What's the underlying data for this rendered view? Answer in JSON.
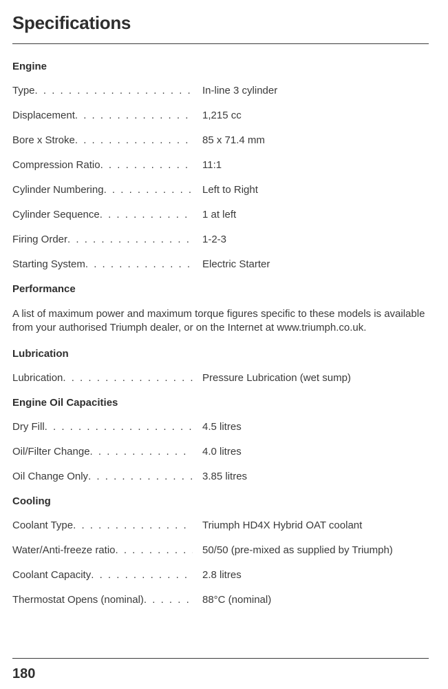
{
  "title": "Specifications",
  "sections": {
    "engine": {
      "heading": "Engine",
      "rows": [
        {
          "label": "Type",
          "value": "In-line 3 cylinder"
        },
        {
          "label": "Displacement",
          "value": "1,215 cc"
        },
        {
          "label": "Bore x Stroke",
          "value": "85 x 71.4 mm"
        },
        {
          "label": "Compression Ratio",
          "value": "11:1"
        },
        {
          "label": "Cylinder Numbering",
          "value": "Left to Right"
        },
        {
          "label": "Cylinder Sequence",
          "value": "1 at left"
        },
        {
          "label": "Firing Order",
          "value": "1-2-3"
        },
        {
          "label": "Starting System",
          "value": "Electric Starter"
        }
      ]
    },
    "performance": {
      "heading": "Performance",
      "text": "A list of maximum power and maximum torque figures specific to these models is available from your authorised Triumph dealer, or on the Internet at www.triumph.co.uk."
    },
    "lubrication": {
      "heading": "Lubrication",
      "rows": [
        {
          "label": "Lubrication",
          "value": "Pressure Lubrication (wet sump)"
        }
      ]
    },
    "oil": {
      "heading": "Engine Oil Capacities",
      "rows": [
        {
          "label": "Dry Fill",
          "value": "4.5 litres"
        },
        {
          "label": "Oil/Filter Change",
          "value": "4.0 litres"
        },
        {
          "label": "Oil Change Only",
          "value": "3.85 litres"
        }
      ]
    },
    "cooling": {
      "heading": "Cooling",
      "rows": [
        {
          "label": "Coolant Type",
          "value": "Triumph HD4X Hybrid OAT coolant"
        },
        {
          "label": "Water/Anti-freeze ratio",
          "value": "50/50 (pre-mixed as supplied by Triumph)"
        },
        {
          "label": "Coolant Capacity",
          "value": "2.8 litres"
        },
        {
          "label": "Thermostat Opens (nominal)",
          "value": "88°C (nominal)"
        }
      ]
    }
  },
  "dots": ". . . . . . . . . . . . . . . . . . . . . . . . . . . . . . . . . . . . . . . . . . . . . . . . . . . . . . . . . . . . . .",
  "pageNumber": "180"
}
